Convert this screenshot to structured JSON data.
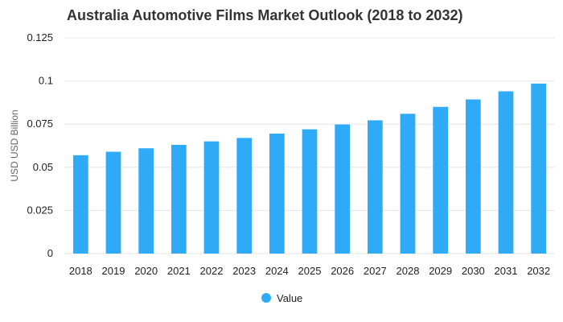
{
  "chart_data": {
    "type": "bar",
    "title": "Australia Automotive Films Market Outlook (2018 to 2032)",
    "xlabel": "",
    "ylabel": "USD USD Billion",
    "categories": [
      "2018",
      "2019",
      "2020",
      "2021",
      "2022",
      "2023",
      "2024",
      "2025",
      "2026",
      "2027",
      "2028",
      "2029",
      "2030",
      "2031",
      "2032"
    ],
    "series": [
      {
        "name": "Value",
        "color": "#2eaaf7",
        "values": [
          0.057,
          0.059,
          0.061,
          0.063,
          0.065,
          0.067,
          0.0695,
          0.072,
          0.0748,
          0.0772,
          0.081,
          0.085,
          0.0893,
          0.094,
          0.0985
        ]
      }
    ],
    "ylim": [
      0,
      0.125
    ],
    "yticks": [
      "0",
      "0.025",
      "0.05",
      "0.075",
      "0.1",
      "0.125"
    ],
    "grid": true,
    "legend": "bottom-center"
  }
}
